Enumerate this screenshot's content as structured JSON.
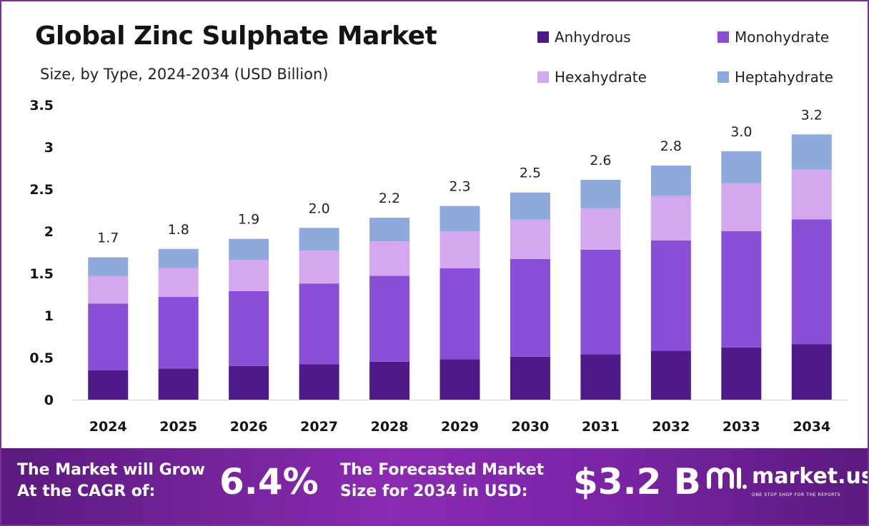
{
  "colors": {
    "anhydrous": "#4e1a8a",
    "monohydrate": "#8a4fd6",
    "hexahydrate": "#d3a8ee",
    "heptahydrate": "#8eaadd",
    "banner_start": "#5a1a7e",
    "banner_end": "#8a2bb2"
  },
  "chart_data": {
    "type": "bar",
    "stacked": true,
    "title": "Global Zinc Sulphate Market",
    "subtitle": "Size, by Type, 2024-2034 (USD Billion)",
    "xlabel": "",
    "ylabel": "",
    "ylim": [
      0,
      3.5
    ],
    "yticks": [
      0,
      0.5,
      1,
      1.5,
      2,
      2.5,
      3,
      3.5
    ],
    "ytick_labels": [
      "0",
      "0.5",
      "1",
      "1.5",
      "2",
      "2.5",
      "3",
      "3.5"
    ],
    "categories": [
      "2024",
      "2025",
      "2026",
      "2027",
      "2028",
      "2029",
      "2030",
      "2031",
      "2032",
      "2033",
      "2034"
    ],
    "series": [
      {
        "name": "Anhydrous",
        "color": "#4e1a8a",
        "values": [
          0.35,
          0.37,
          0.4,
          0.42,
          0.45,
          0.48,
          0.51,
          0.54,
          0.58,
          0.62,
          0.66
        ]
      },
      {
        "name": "Monohydrate",
        "color": "#8a4fd6",
        "values": [
          0.79,
          0.85,
          0.89,
          0.96,
          1.02,
          1.08,
          1.16,
          1.24,
          1.31,
          1.38,
          1.48
        ]
      },
      {
        "name": "Hexahydrate",
        "color": "#d3a8ee",
        "values": [
          0.33,
          0.34,
          0.37,
          0.39,
          0.41,
          0.44,
          0.47,
          0.49,
          0.53,
          0.57,
          0.59
        ]
      },
      {
        "name": "Heptahydrate",
        "color": "#8eaadd",
        "values": [
          0.22,
          0.23,
          0.25,
          0.27,
          0.28,
          0.3,
          0.32,
          0.34,
          0.36,
          0.38,
          0.42
        ]
      }
    ],
    "total_labels": [
      "1.7",
      "1.8",
      "1.9",
      "2.0",
      "2.2",
      "2.3",
      "2.5",
      "2.6",
      "2.8",
      "3.0",
      "3.2"
    ],
    "legend": [
      "Anhydrous",
      "Monohydrate",
      "Hexahydrate",
      "Heptahydrate"
    ],
    "legend_position": "top-right",
    "grid": false
  },
  "banner": {
    "cagr_line1": "The Market will Grow",
    "cagr_line2": "At the CAGR of:",
    "cagr_value": "6.4%",
    "forecast_line1": "The Forecasted Market",
    "forecast_line2": "Size for 2034 in USD:",
    "forecast_value": "$3.2 B",
    "brand_name": "market.us",
    "brand_tagline": "ONE STOP SHOP FOR THE REPORTS"
  }
}
